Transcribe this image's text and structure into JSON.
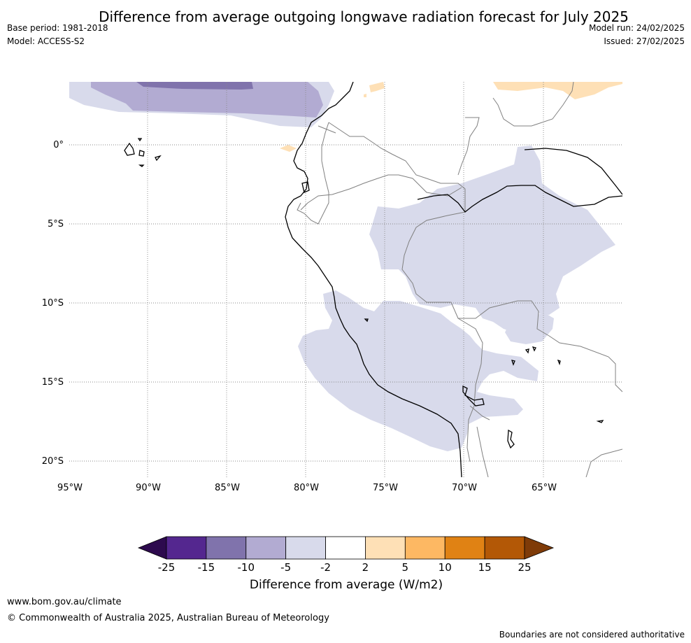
{
  "header": {
    "title": "Difference from average outgoing longwave radiation forecast for July 2025",
    "base_period": "Base period: 1981-2018",
    "model": "Model: ACCESS-S2",
    "model_run": "Model run: 24/02/2025",
    "issued": "Issued: 27/02/2025"
  },
  "map": {
    "lat_labels": [
      "0°",
      "5°S",
      "10°S",
      "15°S",
      "20°S"
    ],
    "lon_labels": [
      "95°W",
      "90°W",
      "85°W",
      "80°W",
      "75°W",
      "70°W",
      "65°W"
    ]
  },
  "colorbar": {
    "unit_label": "Difference from average (W/m2)",
    "ticks": [
      "-25",
      "-15",
      "-10",
      "-5",
      "-2",
      "2",
      "5",
      "10",
      "15",
      "25"
    ],
    "colors": {
      "below_min": "#2d0a4e",
      "bins": [
        "#54278f",
        "#8073ac",
        "#b2abd2",
        "#d8daeb",
        "#ffffff",
        "#fee0b6",
        "#fdb863",
        "#e08214",
        "#b35806"
      ],
      "above_max": "#7f3b08"
    }
  },
  "footer": {
    "website": "www.bom.gov.au/climate",
    "copyright": "© Commonwealth of Australia 2025, Australian Bureau of Meteorology",
    "disclaimer": "Boundaries are not considered authoritative"
  }
}
